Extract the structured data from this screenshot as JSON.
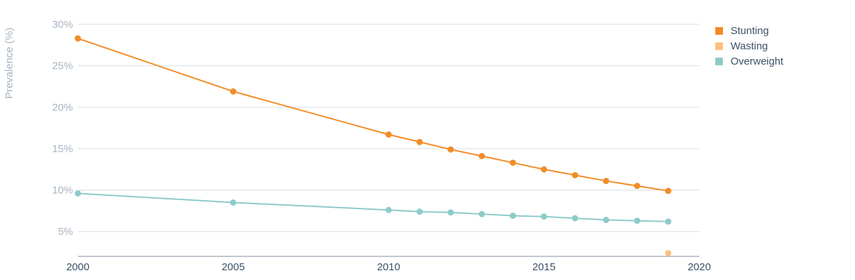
{
  "chart_data": {
    "type": "line",
    "ylabel": "Prevalence (%)",
    "xlim": [
      2000,
      2020
    ],
    "ylim": [
      2,
      30
    ],
    "xticks": [
      {
        "value": 2000,
        "label": "2000"
      },
      {
        "value": 2005,
        "label": "2005"
      },
      {
        "value": 2010,
        "label": "2010"
      },
      {
        "value": 2015,
        "label": "2015"
      },
      {
        "value": 2020,
        "label": "2020"
      }
    ],
    "yticks": [
      {
        "value": 5,
        "label": "5%"
      },
      {
        "value": 10,
        "label": "10%"
      },
      {
        "value": 15,
        "label": "15%"
      },
      {
        "value": 20,
        "label": "20%"
      },
      {
        "value": 25,
        "label": "25%"
      },
      {
        "value": 30,
        "label": "30%"
      }
    ],
    "grid": true,
    "legend_position": "top-right",
    "series": [
      {
        "name": "Stunting",
        "color": "#f28c28",
        "x": [
          2000,
          2005,
          2010,
          2011,
          2012,
          2013,
          2014,
          2015,
          2016,
          2017,
          2018,
          2019
        ],
        "y": [
          28.3,
          21.9,
          16.7,
          15.8,
          14.9,
          14.1,
          13.3,
          12.5,
          11.8,
          11.1,
          10.5,
          9.9
        ]
      },
      {
        "name": "Wasting",
        "color": "#fbc27e",
        "x": [
          2019
        ],
        "y": [
          2.4
        ]
      },
      {
        "name": "Overweight",
        "color": "#8ecbc8",
        "x": [
          2000,
          2005,
          2010,
          2011,
          2012,
          2013,
          2014,
          2015,
          2016,
          2017,
          2018,
          2019
        ],
        "y": [
          9.6,
          8.5,
          7.6,
          7.4,
          7.3,
          7.1,
          6.9,
          6.8,
          6.6,
          6.4,
          6.3,
          6.2
        ]
      }
    ]
  }
}
